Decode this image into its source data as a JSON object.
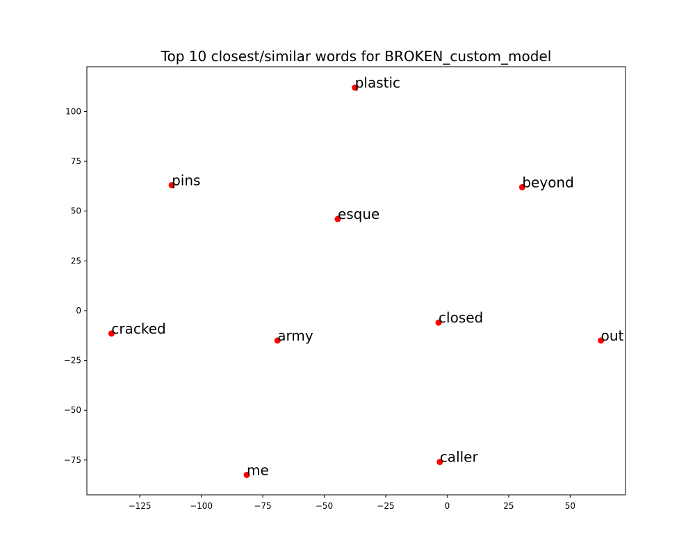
{
  "chart_data": {
    "type": "scatter",
    "title": "Top 10 closest/similar words for BROKEN_custom_model",
    "xlabel": "",
    "ylabel": "",
    "xlim": [
      -146.5,
      72.5
    ],
    "ylim": [
      -92.5,
      122.5
    ],
    "xticks": [
      -125,
      -100,
      -75,
      -50,
      -25,
      0,
      25,
      50
    ],
    "yticks": [
      -75,
      -50,
      -25,
      0,
      25,
      50,
      75,
      100
    ],
    "xtick_labels": [
      "−125",
      "−100",
      "−75",
      "−50",
      "−25",
      "0",
      "25",
      "50"
    ],
    "ytick_labels": [
      "−75",
      "−50",
      "−25",
      "0",
      "25",
      "50",
      "75",
      "100"
    ],
    "grid": false,
    "marker_color": "#ff0000",
    "points": [
      {
        "label": "plastic",
        "x": -37.5,
        "y": 112.0
      },
      {
        "label": "pins",
        "x": -112.0,
        "y": 63.0
      },
      {
        "label": "beyond",
        "x": 30.5,
        "y": 62.0
      },
      {
        "label": "esque",
        "x": -44.5,
        "y": 46.0
      },
      {
        "label": "cracked",
        "x": -136.5,
        "y": -11.5
      },
      {
        "label": "closed",
        "x": -3.5,
        "y": -6.0
      },
      {
        "label": "army",
        "x": -69.0,
        "y": -15.0
      },
      {
        "label": "out",
        "x": 62.5,
        "y": -15.0
      },
      {
        "label": "caller",
        "x": -3.0,
        "y": -76.0
      },
      {
        "label": "me",
        "x": -81.5,
        "y": -82.5
      }
    ]
  }
}
